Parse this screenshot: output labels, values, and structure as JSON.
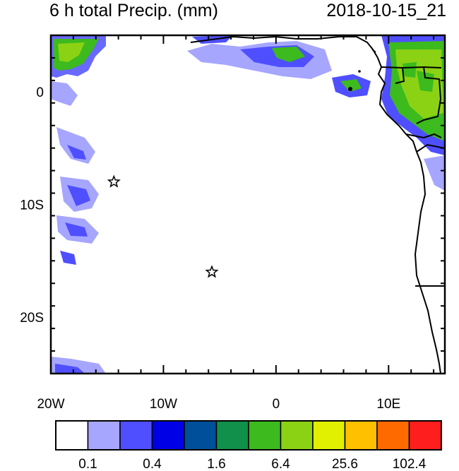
{
  "header": {
    "title": "6 h total Precip. (mm)",
    "datetime": "2018-10-15_21"
  },
  "map": {
    "lon_range": [
      -20,
      15
    ],
    "lat_range": [
      -25,
      5
    ],
    "lon_ticks": [
      {
        "lon": -20,
        "label": "20W"
      },
      {
        "lon": -10,
        "label": "10W"
      },
      {
        "lon": 0,
        "label": "0"
      },
      {
        "lon": 10,
        "label": "10E"
      }
    ],
    "lat_ticks": [
      {
        "lat": 0,
        "label": "0"
      },
      {
        "lat": -10,
        "label": "10S"
      },
      {
        "lat": -20,
        "label": "20S"
      }
    ],
    "markers": [
      {
        "name": "star-marker-1",
        "lon": -14.4,
        "lat": -8.0
      },
      {
        "name": "star-marker-2",
        "lon": -5.7,
        "lat": -16.0
      }
    ]
  },
  "colorbar": {
    "colors": [
      "#ffffff",
      "#a6a6ff",
      "#4f4fff",
      "#0000e6",
      "#004f9a",
      "#10904a",
      "#3cba1e",
      "#8bd214",
      "#e1f000",
      "#ffc000",
      "#ff6a00",
      "#ff1e1e"
    ],
    "labels": [
      "0.1",
      "0.4",
      "1.6",
      "6.4",
      "25.6",
      "102.4"
    ]
  }
}
